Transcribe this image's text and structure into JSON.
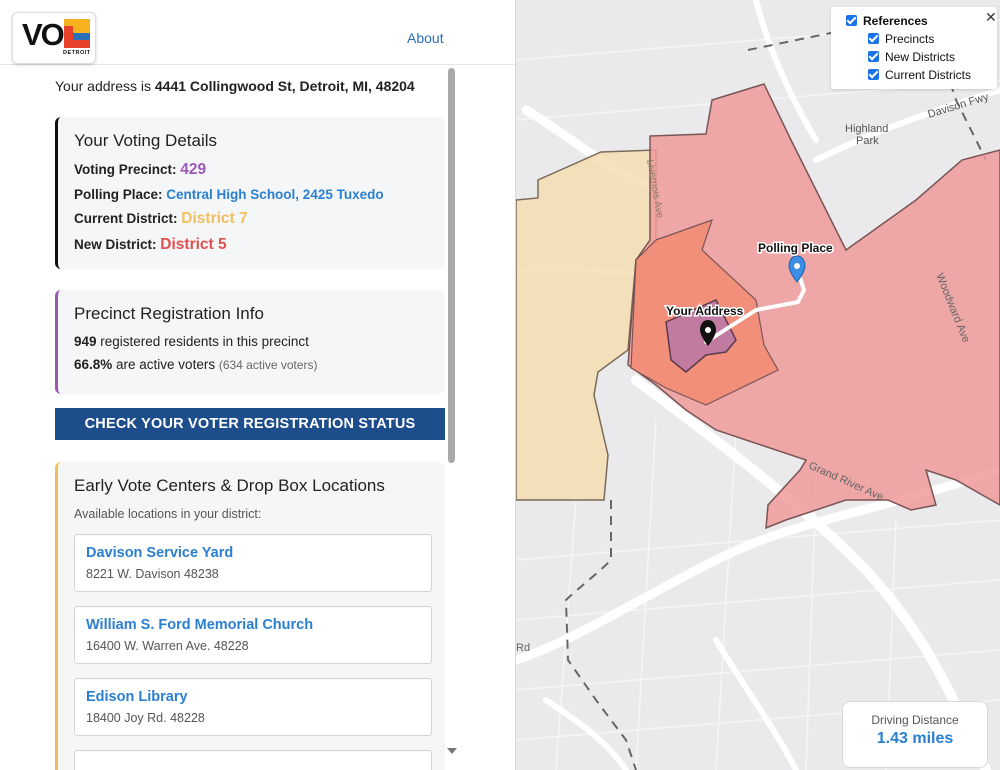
{
  "header": {
    "logo_main": "VO",
    "logo_sub": "DETROIT",
    "about_label": "About"
  },
  "address": {
    "prefix": "Your address is ",
    "value": "4441 Collingwood St, Detroit, MI, 48204"
  },
  "voting_details": {
    "title": "Your Voting Details",
    "precinct_label": "Voting Precinct:",
    "precinct_value": "429",
    "polling_label": "Polling Place:",
    "polling_value": "Central High School, 2425 Tuxedo",
    "current_district_label": "Current District:",
    "current_district_value": "District 7",
    "new_district_label": "New District:",
    "new_district_value": "District 5"
  },
  "precinct_info": {
    "title": "Precinct Registration Info",
    "registered_count": "949",
    "registered_text": " registered residents in this precinct",
    "active_pct": "66.8%",
    "active_text": " are active voters ",
    "active_count_text": "(634 active voters)"
  },
  "check_button_label": "CHECK YOUR VOTER REGISTRATION STATUS",
  "early_vote": {
    "title": "Early Vote Centers & Drop Box Locations",
    "subtitle": "Available locations in your district:",
    "locations": [
      {
        "name": "Davison Service Yard",
        "address": "8221 W. Davison 48238"
      },
      {
        "name": "William S. Ford Memorial Church",
        "address": "16400 W. Warren Ave. 48228"
      },
      {
        "name": "Edison Library",
        "address": "18400 Joy Rd. 48228"
      }
    ]
  },
  "map": {
    "labels": {
      "highland_park_1": "Highland",
      "highland_park_2": "Park",
      "davison": "Davison Fwy",
      "woodward": "Woodward Ave",
      "grand_river": "Grand River Ave",
      "livernois": "Livernois Ave",
      "rd": "Rd",
      "polling_place": "Polling Place",
      "your_address": "Your Address"
    },
    "colors": {
      "new_district": "#ef9a9a",
      "current_district": "#f5deb3",
      "precinct": "#c27ba0",
      "marker_blue": "#3a8ee6"
    }
  },
  "references": {
    "title": "References",
    "items": [
      "Precincts",
      "New Districts",
      "Current Districts"
    ]
  },
  "distance": {
    "label": "Driving Distance",
    "value": "1.43 miles"
  }
}
